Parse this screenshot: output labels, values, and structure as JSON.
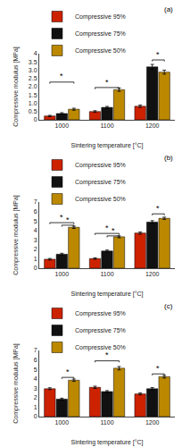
{
  "chart_data": [
    {
      "type": "bar",
      "xlabel": "Sintering temperature [°C]",
      "ylabel": "Compressive modulus [MPa]",
      "categories": [
        "1000",
        "1100",
        "1200"
      ],
      "series": [
        {
          "name": "Compressive 95%",
          "color": "#CC2200",
          "values": [
            0.23,
            0.5,
            0.82
          ],
          "errors": [
            0.04,
            0.05,
            0.07
          ]
        },
        {
          "name": "Compressive 75%",
          "color": "#111111",
          "values": [
            0.38,
            0.75,
            3.2
          ],
          "errors": [
            0.05,
            0.06,
            0.15
          ]
        },
        {
          "name": "Compressive 50%",
          "color": "#BB8800",
          "values": [
            0.64,
            1.82,
            2.88
          ],
          "errors": [
            0.06,
            0.1,
            0.12
          ]
        }
      ],
      "ylim": [
        0,
        4
      ],
      "yticks": [
        0,
        0.5,
        {
          "value": 1.0,
          "label": "1.0"
        },
        1.5,
        {
          "value": 2.0,
          "label": "2.0"
        },
        2.5,
        {
          "value": 3.0,
          "label": "3.0"
        },
        3.5,
        4
      ],
      "grid": false,
      "legend": "top left",
      "annotations": [
        {
          "text": "(a)"
        },
        {
          "text": "*",
          "y": 2.28,
          "from": {
            "category": "1000",
            "series": "Compressive 95%"
          },
          "to": {
            "category": "1000",
            "series": "Compressive 50%"
          }
        },
        {
          "text": "*",
          "y": 1.95,
          "from": {
            "category": "1100",
            "series": "Compressive 95%"
          },
          "to": {
            "category": "1100",
            "series": "Compressive 50%"
          }
        },
        {
          "text": "*",
          "y": 3.62,
          "from": {
            "category": "1200",
            "series": "Compressive 75%"
          },
          "to": {
            "category": "1200",
            "series": "Compressive 50%"
          }
        }
      ]
    },
    {
      "type": "bar",
      "xlabel": "Sintering temperature [°C]",
      "ylabel": "Compressive modulus [MPa]",
      "categories": [
        "1000",
        "1100",
        "1200"
      ],
      "series": [
        {
          "name": "Compressive 95%",
          "color": "#CC2200",
          "values": [
            0.95,
            1.02,
            3.72
          ],
          "errors": [
            0.08,
            0.07,
            0.12
          ]
        },
        {
          "name": "Compressive 75%",
          "color": "#111111",
          "values": [
            1.48,
            1.82,
            4.88
          ],
          "errors": [
            0.1,
            0.1,
            0.15
          ]
        },
        {
          "name": "Compressive 50%",
          "color": "#BB8800",
          "values": [
            4.33,
            3.32,
            5.28
          ],
          "errors": [
            0.12,
            0.1,
            0.12
          ]
        }
      ],
      "ylim": [
        0,
        7
      ],
      "yticks": [
        0,
        1,
        2,
        3,
        4,
        5,
        6,
        7
      ],
      "grid": false,
      "legend": "top left",
      "annotations": [
        {
          "text": "(b)"
        },
        {
          "text": "*",
          "y": 4.82,
          "from": {
            "category": "1000",
            "series": "Compressive 95%"
          },
          "to": {
            "category": "1000",
            "series": "Compressive 50%"
          }
        },
        {
          "text": "*",
          "y": 4.55,
          "from": {
            "category": "1000",
            "series": "Compressive 75%"
          },
          "to": {
            "category": "1000",
            "series": "Compressive 50%"
          }
        },
        {
          "text": "*",
          "y": 3.68,
          "from": {
            "category": "1100",
            "series": "Compressive 95%"
          },
          "to": {
            "category": "1100",
            "series": "Compressive 50%"
          }
        },
        {
          "text": "*",
          "y": 3.42,
          "from": {
            "category": "1100",
            "series": "Compressive 75%"
          },
          "to": {
            "category": "1100",
            "series": "Compressive 50%"
          }
        },
        {
          "text": "*",
          "y": 5.75,
          "from": {
            "category": "1200",
            "series": "Compressive 75%"
          },
          "to": {
            "category": "1200",
            "series": "Compressive 50%"
          }
        }
      ]
    },
    {
      "type": "bar",
      "xlabel": "Sintering temperature [°C]",
      "ylabel": "Compressive modulus [MPa]",
      "categories": [
        "1000",
        "1100",
        "1200"
      ],
      "series": [
        {
          "name": "Compressive 95%",
          "color": "#CC2200",
          "values": [
            2.95,
            3.1,
            2.4
          ],
          "errors": [
            0.1,
            0.12,
            0.1
          ]
        },
        {
          "name": "Compressive 75%",
          "color": "#111111",
          "values": [
            1.85,
            2.65,
            2.95
          ],
          "errors": [
            0.1,
            0.1,
            0.12
          ]
        },
        {
          "name": "Compressive 50%",
          "color": "#BB8800",
          "values": [
            3.85,
            5.12,
            4.22
          ],
          "errors": [
            0.12,
            0.18,
            0.14
          ]
        }
      ],
      "ylim": [
        0,
        7
      ],
      "yticks": [
        0,
        1,
        2,
        3,
        4,
        5,
        6,
        7
      ],
      "grid": false,
      "legend": "top left",
      "annotations": [
        {
          "text": "(c)"
        },
        {
          "text": "*",
          "y": 4.15,
          "from": {
            "category": "1000",
            "series": "Compressive 75%"
          },
          "to": {
            "category": "1000",
            "series": "Compressive 50%"
          }
        },
        {
          "text": "*",
          "y": 5.9,
          "from": {
            "category": "1100",
            "series": "Compressive 95%"
          },
          "to": {
            "category": "1100",
            "series": "Compressive 50%"
          }
        },
        {
          "text": "*",
          "y": 4.52,
          "from": {
            "category": "1200",
            "series": "Compressive 75%"
          },
          "to": {
            "category": "1200",
            "series": "Compressive 50%"
          }
        }
      ]
    }
  ]
}
